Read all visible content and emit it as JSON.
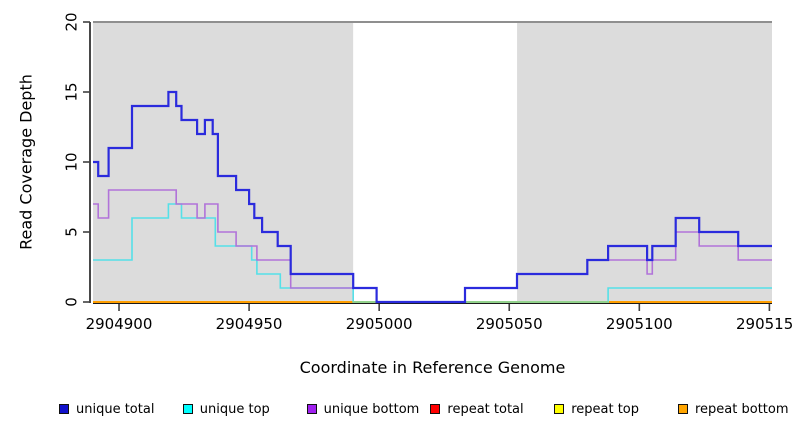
{
  "chart_data": {
    "type": "line",
    "subtype": "step-coverage-plot",
    "title": "",
    "xlabel": "Coordinate in Reference Genome",
    "ylabel": "Read Coverage Depth",
    "xlim": [
      2904890,
      2905151
    ],
    "ylim": [
      0,
      20
    ],
    "xticks": [
      2904900,
      2904950,
      2905000,
      2905050,
      2905100,
      2905150
    ],
    "yticks": [
      0,
      5,
      10,
      15,
      20
    ],
    "grid": false,
    "legend_position": "bottom",
    "colors": {
      "shaded_region": "#dcdcdc",
      "plot_top_border": "#8f8f8f",
      "axis": "#1a1a1a",
      "tick": "#404040",
      "zero_overlap_green": "#8fd48f"
    },
    "shaded_regions": [
      {
        "x0": 2904890,
        "x1": 2904990
      },
      {
        "x0": 2905053,
        "x1": 2905151
      }
    ],
    "zero_line_blend": {
      "x0": 2904990,
      "x1": 2905088,
      "y": 0,
      "color": "#8fd48f",
      "note": "unique-top (cyan) at depth 0 overlapping repeat lines renders pale green"
    },
    "series": [
      {
        "name": "unique total",
        "color": "#2b2bdd",
        "legend_color": "#1111cc",
        "width": 2.2,
        "steps": [
          [
            2904890,
            10
          ],
          [
            2904892,
            9
          ],
          [
            2904896,
            11
          ],
          [
            2904905,
            14
          ],
          [
            2904919,
            15
          ],
          [
            2904922,
            14
          ],
          [
            2904924,
            13
          ],
          [
            2904930,
            12
          ],
          [
            2904933,
            13
          ],
          [
            2904936,
            12
          ],
          [
            2904938,
            9
          ],
          [
            2904945,
            8
          ],
          [
            2904950,
            7
          ],
          [
            2904952,
            6
          ],
          [
            2904955,
            5
          ],
          [
            2904961,
            4
          ],
          [
            2904966,
            2
          ],
          [
            2904990,
            1
          ],
          [
            2904999,
            0
          ],
          [
            2905033,
            1
          ],
          [
            2905053,
            2
          ],
          [
            2905080,
            3
          ],
          [
            2905088,
            4
          ],
          [
            2905103,
            3
          ],
          [
            2905105,
            4
          ],
          [
            2905114,
            6
          ],
          [
            2905123,
            5
          ],
          [
            2905138,
            4
          ]
        ]
      },
      {
        "name": "unique top",
        "color": "#55e0e8",
        "legend_color": "#00ffff",
        "width": 1.6,
        "steps": [
          [
            2904890,
            3
          ],
          [
            2904905,
            6
          ],
          [
            2904919,
            7
          ],
          [
            2904924,
            6
          ],
          [
            2904937,
            4
          ],
          [
            2904951,
            3
          ],
          [
            2904953,
            2
          ],
          [
            2904962,
            1
          ],
          [
            2904990,
            0
          ],
          [
            2905088,
            1
          ]
        ]
      },
      {
        "name": "unique bottom",
        "color": "#b173d9",
        "legend_color": "#a020f0",
        "width": 1.6,
        "steps": [
          [
            2904890,
            7
          ],
          [
            2904892,
            6
          ],
          [
            2904896,
            8
          ],
          [
            2904922,
            7
          ],
          [
            2904930,
            6
          ],
          [
            2904933,
            7
          ],
          [
            2904938,
            5
          ],
          [
            2904945,
            4
          ],
          [
            2904953,
            3
          ],
          [
            2904966,
            1
          ],
          [
            2904999,
            0
          ],
          [
            2905033,
            1
          ],
          [
            2905053,
            2
          ],
          [
            2905080,
            3
          ],
          [
            2905103,
            2
          ],
          [
            2905105,
            3
          ],
          [
            2905114,
            5
          ],
          [
            2905123,
            4
          ],
          [
            2905138,
            3
          ]
        ]
      },
      {
        "name": "repeat total",
        "color": "#dd0000",
        "legend_color": "#ff0000",
        "width": 1.5,
        "steps": [
          [
            2904890,
            0
          ]
        ]
      },
      {
        "name": "repeat top",
        "color": "#f2e600",
        "legend_color": "#ffff00",
        "width": 1.5,
        "steps": [
          [
            2904890,
            0
          ]
        ]
      },
      {
        "name": "repeat bottom",
        "color": "#ff9e00",
        "legend_color": "#ffa500",
        "width": 2,
        "steps": [
          [
            2904890,
            0
          ]
        ]
      }
    ]
  }
}
